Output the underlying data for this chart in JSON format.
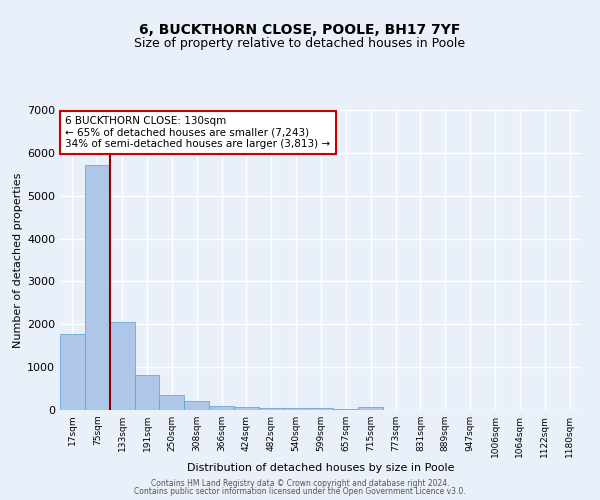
{
  "title": "6, BUCKTHORN CLOSE, POOLE, BH17 7YF",
  "subtitle": "Size of property relative to detached houses in Poole",
  "xlabel": "Distribution of detached houses by size in Poole",
  "ylabel": "Number of detached properties",
  "bar_labels": [
    "17sqm",
    "75sqm",
    "133sqm",
    "191sqm",
    "250sqm",
    "308sqm",
    "366sqm",
    "424sqm",
    "482sqm",
    "540sqm",
    "599sqm",
    "657sqm",
    "715sqm",
    "773sqm",
    "831sqm",
    "889sqm",
    "947sqm",
    "1006sqm",
    "1064sqm",
    "1122sqm",
    "1180sqm"
  ],
  "bar_heights": [
    1780,
    5720,
    2060,
    820,
    340,
    200,
    105,
    80,
    55,
    42,
    37,
    32,
    78,
    8,
    5,
    5,
    4,
    3,
    3,
    2,
    2
  ],
  "bar_color": "#aec6e8",
  "bar_edge_color": "#5a9fd4",
  "vline_color": "#8b0000",
  "annotation_text": "6 BUCKTHORN CLOSE: 130sqm\n← 65% of detached houses are smaller (7,243)\n34% of semi-detached houses are larger (3,813) →",
  "annotation_box_color": "#ffffff",
  "annotation_box_edge": "#cc0000",
  "ylim": [
    0,
    7000
  ],
  "yticks": [
    0,
    1000,
    2000,
    3000,
    4000,
    5000,
    6000,
    7000
  ],
  "bg_color": "#eaf0fa",
  "grid_color": "#ffffff",
  "footer_line1": "Contains HM Land Registry data © Crown copyright and database right 2024.",
  "footer_line2": "Contains public sector information licensed under the Open Government Licence v3.0.",
  "title_fontsize": 10,
  "subtitle_fontsize": 9
}
